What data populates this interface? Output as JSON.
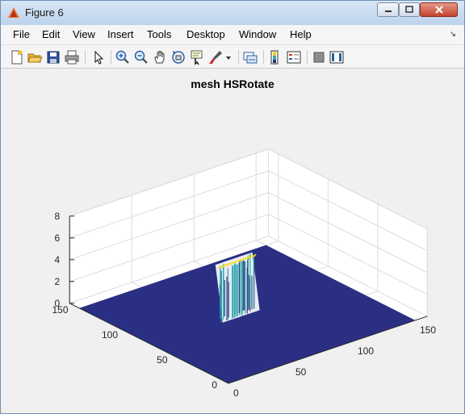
{
  "window": {
    "title": "Figure 6",
    "icon": "matlab-figure-icon"
  },
  "menu": {
    "items": [
      "File",
      "Edit",
      "View",
      "Insert",
      "Tools",
      "Desktop",
      "Window",
      "Help"
    ]
  },
  "toolbar": {
    "buttons": [
      "new-figure-icon",
      "open-file-icon",
      "save-icon",
      "print-icon",
      "select-arrow-icon",
      "zoom-in-icon",
      "zoom-out-icon",
      "pan-hand-icon",
      "rotate-3d-icon",
      "data-cursor-icon",
      "brush-icon",
      "brush-dropdown-icon",
      "link-plot-icon",
      "insert-colorbar-icon",
      "insert-legend-icon",
      "hide-plot-tools-icon",
      "show-plot-tools-icon"
    ]
  },
  "plot": {
    "title": "mesh HSRotate",
    "z_ticks": [
      "0",
      "2",
      "4",
      "6",
      "8"
    ],
    "y_ticks": [
      "0",
      "50",
      "100",
      "150"
    ],
    "x_ticks": [
      "0",
      "50",
      "100",
      "150"
    ],
    "colors": {
      "floor": "#2b2f84",
      "low": "#31407f",
      "mid": "#1fa0a8",
      "high": "#ffdd00"
    }
  },
  "chart_data": {
    "type": "mesh",
    "title": "mesh HSRotate",
    "xlim": [
      0,
      160
    ],
    "ylim": [
      0,
      160
    ],
    "zlim": [
      0,
      8
    ],
    "x_ticks": [
      0,
      50,
      100,
      150
    ],
    "y_ticks": [
      0,
      50,
      100,
      150
    ],
    "z_ticks": [
      0,
      2,
      4,
      6,
      8
    ],
    "grid": true,
    "surface": {
      "base_value": 0,
      "raised_region_x": [
        55,
        85
      ],
      "raised_region_y": [
        75,
        82
      ],
      "peak_value": 5,
      "min_spike_value": 2
    }
  }
}
